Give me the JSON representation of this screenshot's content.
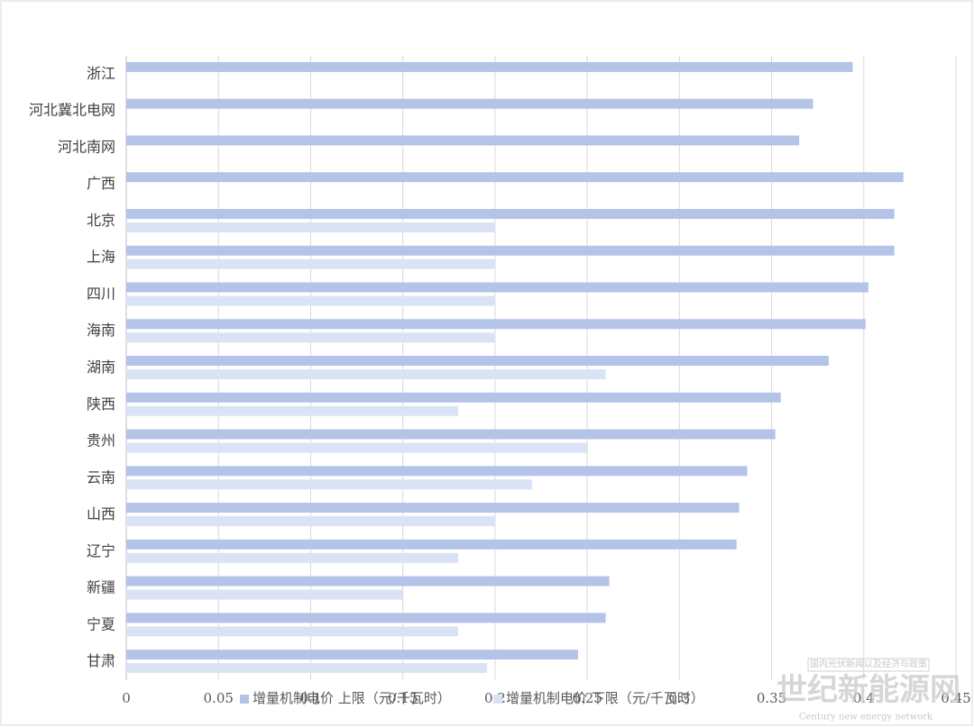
{
  "chart_data": {
    "type": "bar",
    "orientation": "horizontal",
    "categories": [
      "浙江",
      "河北冀北电网",
      "河北南网",
      "广西",
      "北京",
      "上海",
      "四川",
      "海南",
      "湖南",
      "陕西",
      "贵州",
      "云南",
      "山西",
      "辽宁",
      "新疆",
      "宁夏",
      "甘肃"
    ],
    "series": [
      {
        "name": "增量机制电价 上限（元/千瓦时）",
        "color": "#b4c4e8",
        "values": [
          0.394,
          0.3725,
          0.365,
          0.4215,
          0.4166,
          0.4166,
          0.4025,
          0.401,
          0.381,
          0.355,
          0.352,
          0.3368,
          0.3324,
          0.331,
          0.262,
          0.26,
          0.245
        ]
      },
      {
        "name": "增量机制电价 下限（元/千瓦时）",
        "color": "#dae3f5",
        "values": [
          null,
          null,
          null,
          null,
          0.2,
          0.2,
          0.2,
          0.2,
          0.26,
          0.18,
          0.25,
          0.22,
          0.2,
          0.18,
          0.15,
          0.18,
          0.1956
        ]
      }
    ],
    "xlim": [
      0,
      0.45
    ],
    "xticks": [
      0,
      0.05,
      0.1,
      0.15,
      0.2,
      0.25,
      0.3,
      0.35,
      0.4,
      0.45
    ],
    "grid": true,
    "legend": "bottom",
    "watermark": {
      "subtitle": "国内光伏新闻以及经济与政策",
      "title": "世纪新能源网",
      "caption": "Century new energy network"
    }
  }
}
